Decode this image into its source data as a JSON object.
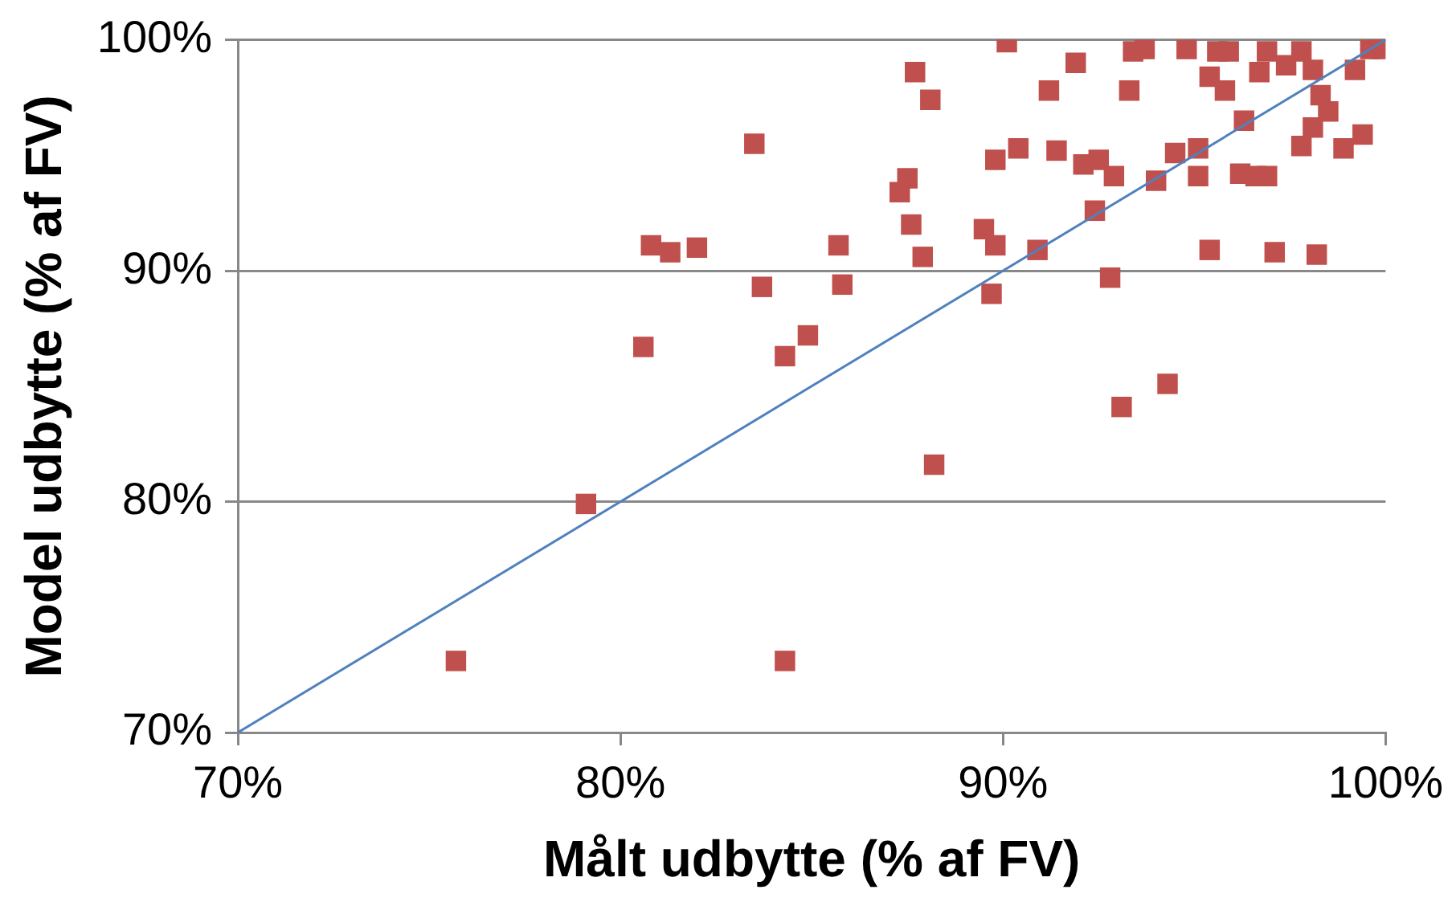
{
  "chart_data": {
    "type": "scatter",
    "xlabel": "Målt udbytte (% af FV)",
    "ylabel": "Model udbytte (% af FV)",
    "xlim": [
      70,
      100
    ],
    "ylim": [
      70,
      100
    ],
    "xticks": [
      {
        "value": 70,
        "label": "70%"
      },
      {
        "value": 80,
        "label": "80%"
      },
      {
        "value": 90,
        "label": "90%"
      },
      {
        "value": 100,
        "label": "100%"
      }
    ],
    "yticks": [
      {
        "value": 70,
        "label": "70%"
      },
      {
        "value": 80,
        "label": "80%"
      },
      {
        "value": 90,
        "label": "90%"
      },
      {
        "value": 100,
        "label": "100%"
      }
    ],
    "grid": "y",
    "legend": false,
    "marker": "square",
    "series": [
      {
        "color": "#c0504d",
        "x": [
          75.7,
          79.1,
          80.6,
          80.8,
          81.3,
          82.0,
          83.5,
          83.7,
          84.3,
          84.3,
          84.9,
          85.7,
          85.8,
          87.3,
          87.5,
          87.6,
          87.7,
          87.9,
          88.1,
          88.2,
          89.5,
          89.7,
          89.8,
          89.8,
          90.1,
          90.4,
          90.9,
          91.2,
          91.4,
          91.9,
          92.1,
          92.4,
          92.5,
          92.8,
          92.9,
          93.1,
          93.3,
          93.4,
          93.7,
          94.0,
          94.3,
          94.5,
          94.8,
          95.1,
          95.1,
          95.4,
          95.4,
          95.6,
          95.9,
          95.8,
          96.2,
          96.3,
          96.7,
          96.6,
          96.9,
          96.9,
          97.1,
          97.4,
          97.8,
          97.8,
          98.1,
          98.1,
          98.2,
          98.3,
          98.5,
          98.9,
          99.2,
          99.4,
          99.6,
          99.9
        ],
        "values": [
          73.1,
          79.9,
          86.7,
          91.1,
          90.8,
          91.0,
          95.5,
          89.3,
          86.3,
          73.1,
          87.2,
          91.1,
          89.4,
          93.4,
          94.0,
          92.0,
          98.6,
          90.6,
          97.4,
          81.6,
          91.8,
          89.0,
          94.8,
          91.1,
          99.9,
          95.3,
          90.9,
          97.8,
          95.2,
          99.0,
          94.6,
          92.6,
          94.8,
          89.7,
          94.1,
          84.1,
          97.8,
          99.5,
          99.6,
          93.9,
          85.1,
          95.1,
          99.6,
          94.1,
          95.3,
          90.9,
          98.4,
          99.5,
          99.5,
          97.8,
          94.2,
          96.5,
          98.6,
          94.1,
          94.1,
          99.5,
          90.8,
          98.9,
          95.4,
          99.5,
          96.2,
          98.7,
          90.7,
          97.6,
          96.9,
          95.3,
          98.7,
          95.9,
          99.6,
          99.6
        ]
      },
      {
        "type": "line",
        "color": "#4f81bd",
        "x": [
          70,
          100
        ],
        "values": [
          70,
          100
        ],
        "marker": "none",
        "line_style": "solid"
      }
    ]
  }
}
